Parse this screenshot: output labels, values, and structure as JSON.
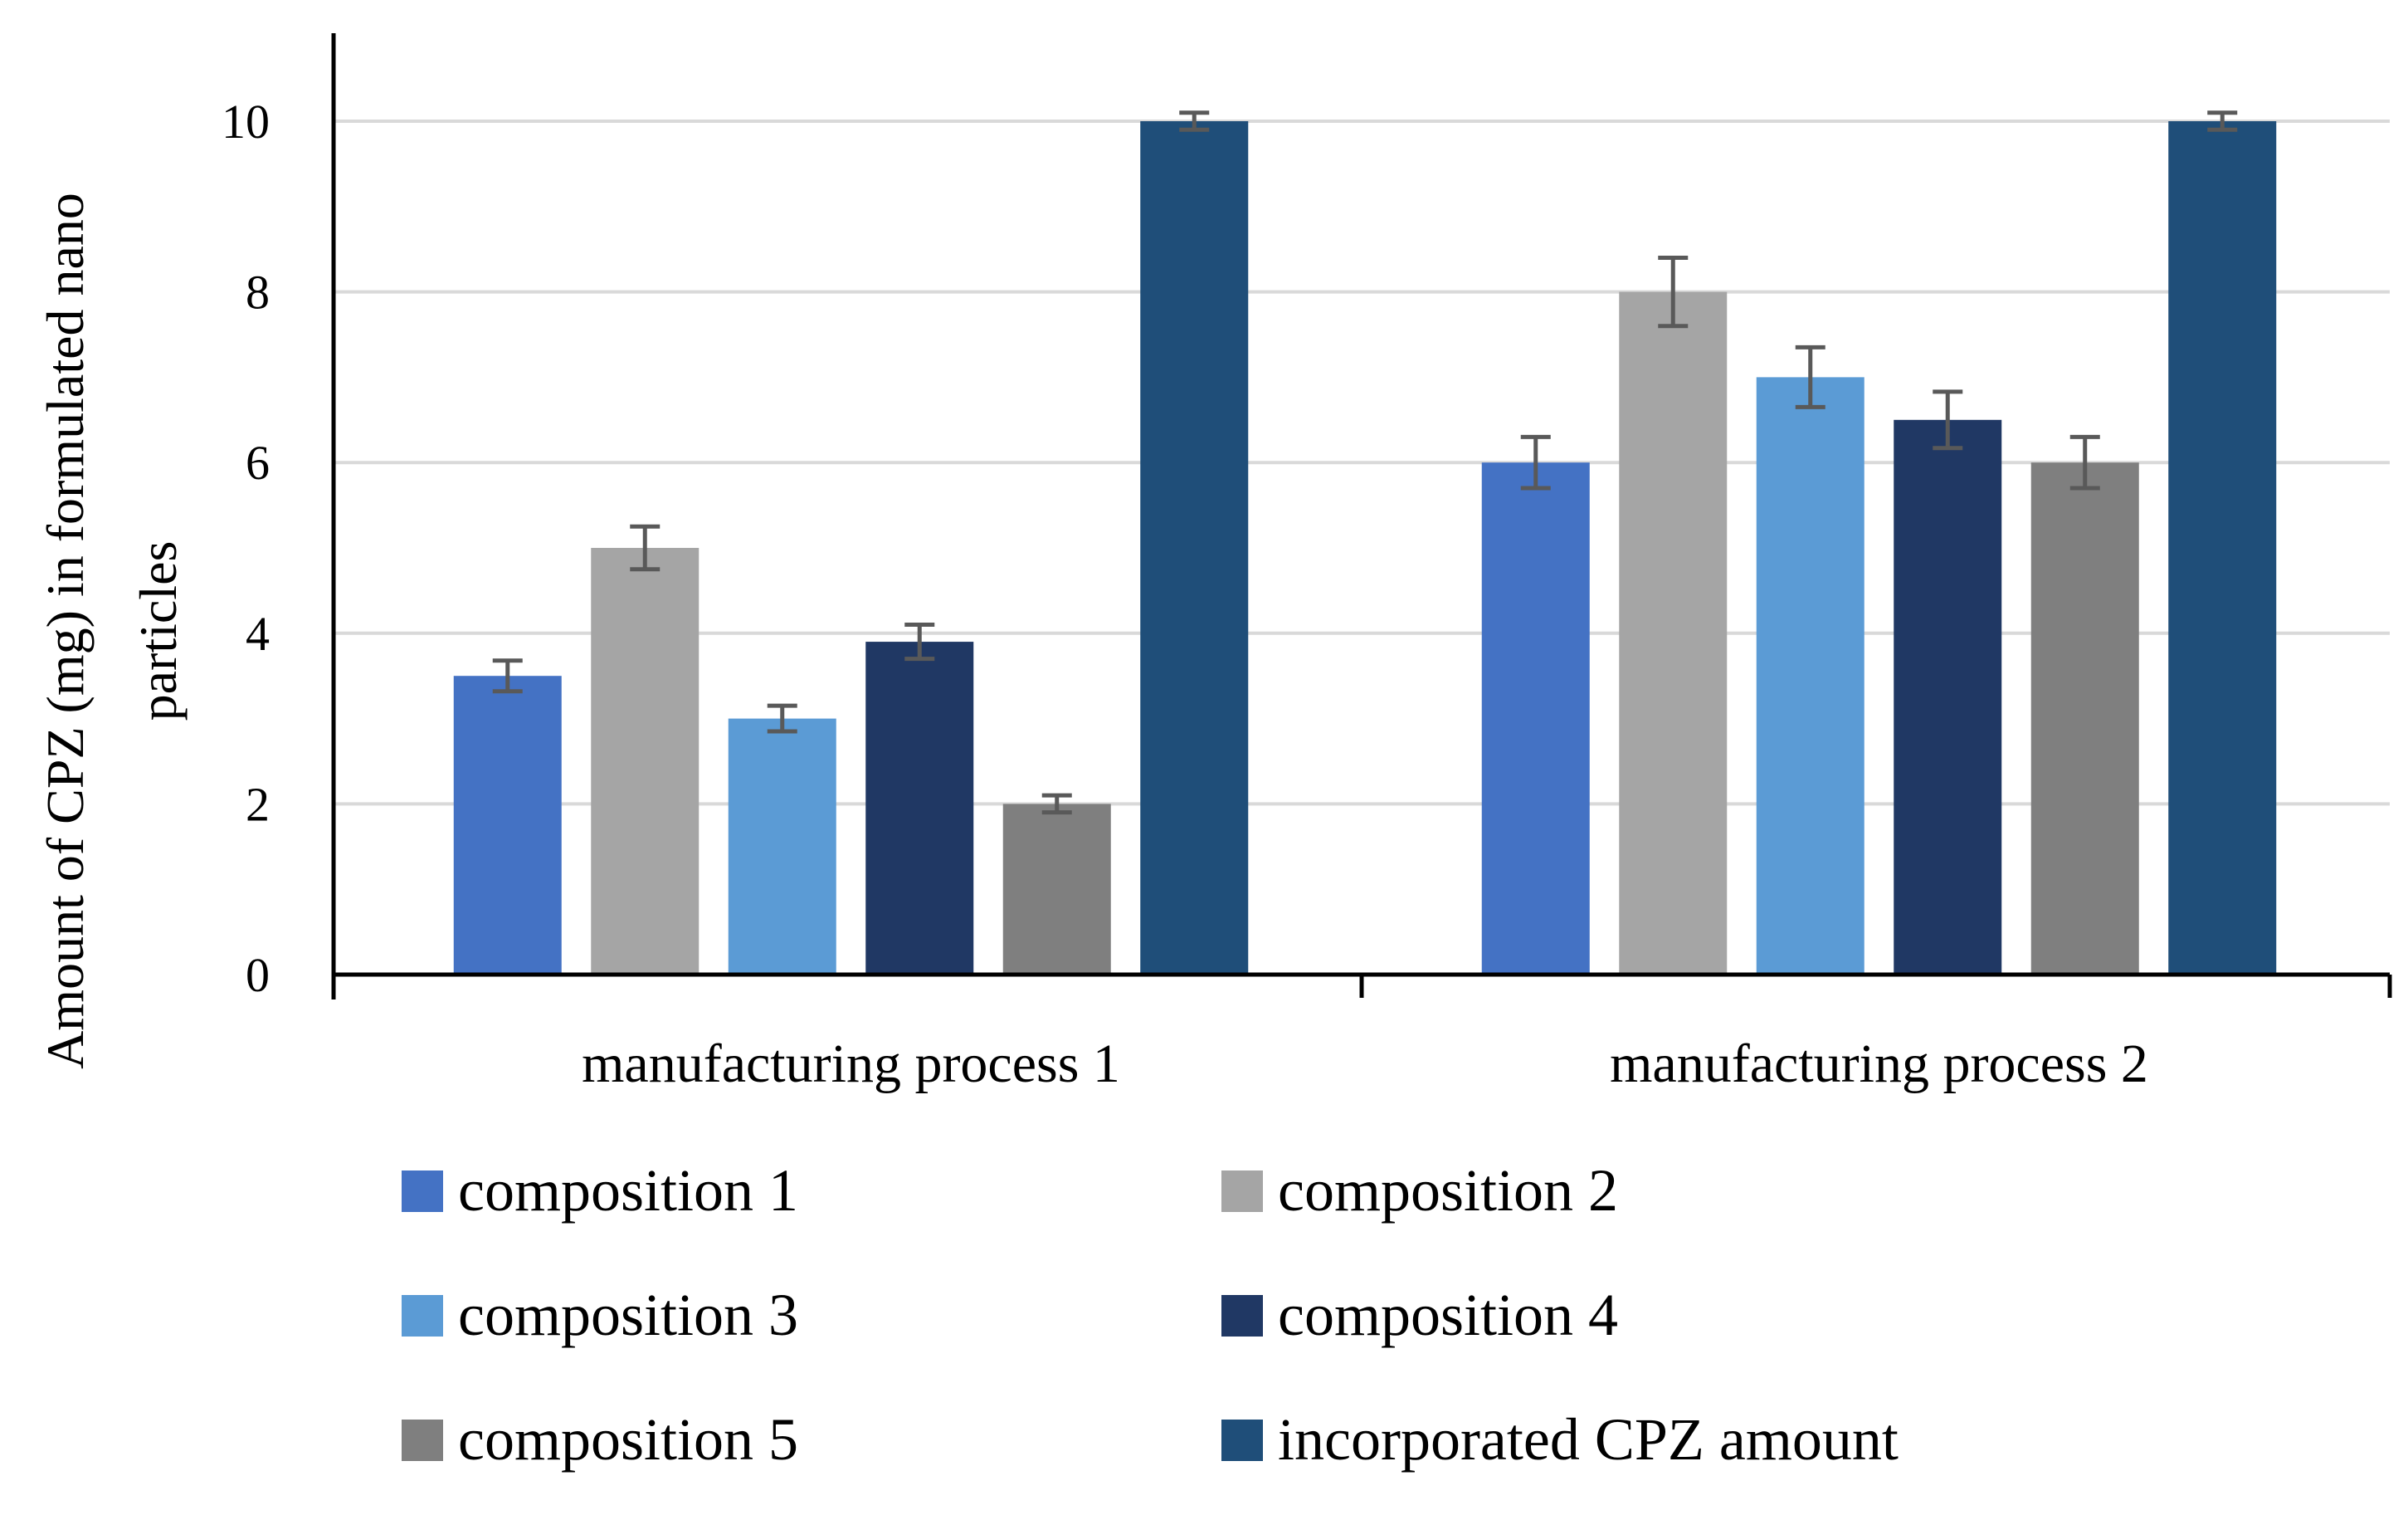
{
  "chart_data": {
    "type": "bar",
    "title": "",
    "xlabel": "",
    "ylabel_lines": [
      "Amount of CPZ (mg)  in formulated nano",
      "particles"
    ],
    "ylim": [
      0,
      11
    ],
    "yticks": [
      0,
      2,
      4,
      6,
      8,
      10
    ],
    "yticks_labels": [
      "0",
      "2",
      "4",
      "6",
      "8",
      "10"
    ],
    "grid": true,
    "legend_position": "bottom",
    "categories": [
      "manufacturing process 1",
      "manufacturing process 2"
    ],
    "series": [
      {
        "name": "composition 1",
        "color": "#4472C4",
        "values": [
          3.5,
          6.0
        ],
        "errors": [
          0.18,
          0.3
        ]
      },
      {
        "name": "composition 2",
        "color": "#A5A5A5",
        "values": [
          5.0,
          8.0
        ],
        "errors": [
          0.25,
          0.4
        ]
      },
      {
        "name": "composition 3",
        "color": "#5B9BD5",
        "values": [
          3.0,
          7.0
        ],
        "errors": [
          0.15,
          0.35
        ]
      },
      {
        "name": "composition 4",
        "color": "#203864",
        "values": [
          3.9,
          6.5
        ],
        "errors": [
          0.2,
          0.33
        ]
      },
      {
        "name": "composition 5",
        "color": "#7F7F7F",
        "values": [
          2.0,
          6.0
        ],
        "errors": [
          0.1,
          0.3
        ]
      },
      {
        "name": "incorporated CPZ amount",
        "color": "#1F4E79",
        "values": [
          10.0,
          10.0
        ],
        "errors": [
          0.1,
          0.1
        ]
      }
    ]
  }
}
